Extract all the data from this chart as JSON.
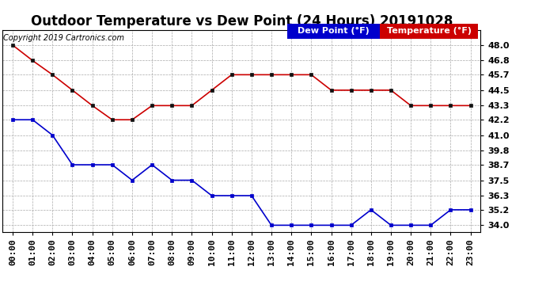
{
  "title": "Outdoor Temperature vs Dew Point (24 Hours) 20191028",
  "copyright": "Copyright 2019 Cartronics.com",
  "background_color": "#ffffff",
  "plot_bg_color": "#ffffff",
  "grid_color": "#aaaaaa",
  "hours": [
    "00:00",
    "01:00",
    "02:00",
    "03:00",
    "04:00",
    "05:00",
    "06:00",
    "07:00",
    "08:00",
    "09:00",
    "10:00",
    "11:00",
    "12:00",
    "13:00",
    "14:00",
    "15:00",
    "16:00",
    "17:00",
    "18:00",
    "19:00",
    "20:00",
    "21:00",
    "22:00",
    "23:00"
  ],
  "temperature": [
    48.0,
    46.8,
    45.7,
    44.5,
    43.3,
    42.2,
    42.2,
    43.3,
    43.3,
    43.3,
    44.5,
    45.7,
    45.7,
    45.7,
    45.7,
    45.7,
    44.5,
    44.5,
    44.5,
    44.5,
    43.3,
    43.3,
    43.3,
    43.3
  ],
  "dew_point": [
    42.2,
    42.2,
    41.0,
    38.7,
    38.7,
    38.7,
    37.5,
    38.7,
    37.5,
    37.5,
    36.3,
    36.3,
    36.3,
    34.0,
    34.0,
    34.0,
    34.0,
    34.0,
    35.2,
    34.0,
    34.0,
    34.0,
    35.2,
    35.2
  ],
  "temp_color": "#cc0000",
  "dew_color": "#0000cc",
  "legend_dew_bg": "#0000cc",
  "legend_temp_bg": "#cc0000",
  "ylim_min": 33.5,
  "ylim_max": 49.2,
  "yticks": [
    34.0,
    35.2,
    36.3,
    37.5,
    38.7,
    39.8,
    41.0,
    42.2,
    43.3,
    44.5,
    45.7,
    46.8,
    48.0
  ],
  "title_fontsize": 12,
  "legend_fontsize": 8,
  "tick_fontsize": 8,
  "copyright_fontsize": 7
}
